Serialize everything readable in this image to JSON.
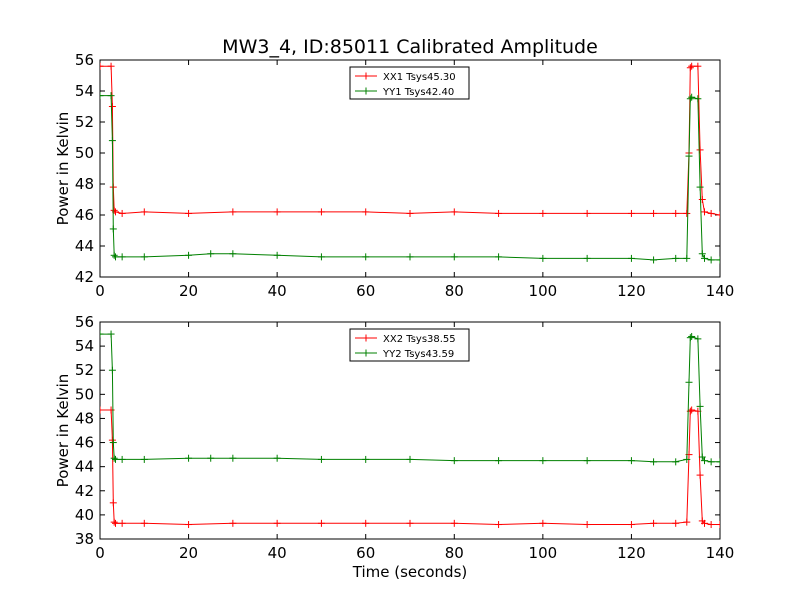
{
  "figure_title": "MW3_4, ID:85011 Calibrated Amplitude",
  "chart_data": [
    {
      "type": "line",
      "title": "MW3_4, ID:85011 Calibrated Amplitude",
      "xlabel": "",
      "ylabel": "Power in Kelvin",
      "xlim": [
        0,
        140
      ],
      "ylim": [
        42,
        56
      ],
      "xticks": [
        "0",
        "20",
        "40",
        "60",
        "80",
        "100",
        "120",
        "140"
      ],
      "yticks": [
        "42",
        "44",
        "46",
        "48",
        "50",
        "52",
        "54",
        "56"
      ],
      "grid": false,
      "legend_position": "top-center",
      "series": [
        {
          "name": "XX1 Tsys45.30",
          "color": "#ff0000",
          "marker": "+",
          "x": [
            0,
            2.5,
            2.8,
            3.0,
            3.2,
            3.5,
            5,
            10,
            20,
            30,
            40,
            50,
            60,
            70,
            80,
            90,
            100,
            110,
            120,
            125,
            130,
            132.5,
            133.0,
            133.3,
            133.6,
            135,
            135.5,
            136.0,
            136.5,
            138,
            140
          ],
          "y": [
            55.6,
            55.6,
            53.0,
            47.8,
            46.3,
            46.2,
            46.1,
            46.2,
            46.1,
            46.2,
            46.2,
            46.2,
            46.2,
            46.1,
            46.2,
            46.1,
            46.1,
            46.1,
            46.1,
            46.1,
            46.1,
            46.1,
            50.0,
            55.5,
            55.6,
            55.6,
            50.2,
            47.0,
            46.2,
            46.1,
            46.0
          ]
        },
        {
          "name": "YY1 Tsys42.40",
          "color": "#008000",
          "marker": "+",
          "x": [
            0,
            2.5,
            2.8,
            3.0,
            3.2,
            3.5,
            5,
            10,
            20,
            25,
            30,
            40,
            50,
            60,
            70,
            80,
            90,
            100,
            110,
            120,
            125,
            130,
            132.5,
            133.0,
            133.3,
            133.6,
            135,
            135.5,
            136.0,
            136.5,
            138,
            140
          ],
          "y": [
            53.7,
            53.7,
            50.8,
            45.1,
            43.4,
            43.3,
            43.3,
            43.3,
            43.4,
            43.5,
            43.5,
            43.4,
            43.3,
            43.3,
            43.3,
            43.3,
            43.3,
            43.2,
            43.2,
            43.2,
            43.1,
            43.2,
            43.2,
            49.8,
            53.5,
            53.6,
            53.5,
            47.8,
            43.5,
            43.2,
            43.1,
            43.1
          ]
        }
      ]
    },
    {
      "type": "line",
      "title": "",
      "xlabel": "Time (seconds)",
      "ylabel": "Power in Kelvin",
      "xlim": [
        0,
        140
      ],
      "ylim": [
        38,
        56
      ],
      "xticks": [
        "0",
        "20",
        "40",
        "60",
        "80",
        "100",
        "120",
        "140"
      ],
      "yticks": [
        "38",
        "40",
        "42",
        "44",
        "46",
        "48",
        "50",
        "52",
        "54",
        "56"
      ],
      "grid": false,
      "legend_position": "top-center",
      "series": [
        {
          "name": "XX2 Tsys38.55",
          "color": "#ff0000",
          "marker": "+",
          "x": [
            0,
            2.5,
            2.8,
            3.0,
            3.2,
            3.5,
            5,
            10,
            20,
            30,
            40,
            50,
            60,
            70,
            80,
            90,
            100,
            110,
            120,
            125,
            130,
            132.5,
            133.0,
            133.3,
            133.6,
            135,
            135.5,
            136.0,
            136.5,
            138,
            140
          ],
          "y": [
            48.7,
            48.7,
            46.2,
            41.0,
            39.4,
            39.3,
            39.3,
            39.3,
            39.2,
            39.3,
            39.3,
            39.3,
            39.3,
            39.3,
            39.3,
            39.2,
            39.3,
            39.2,
            39.2,
            39.3,
            39.3,
            39.4,
            45.0,
            48.6,
            48.7,
            48.6,
            43.3,
            39.5,
            39.3,
            39.2,
            39.2
          ]
        },
        {
          "name": "YY2 Tsys43.59",
          "color": "#008000",
          "marker": "+",
          "x": [
            0,
            2.5,
            2.8,
            3.0,
            3.2,
            3.5,
            5,
            10,
            20,
            25,
            30,
            40,
            50,
            60,
            70,
            80,
            90,
            100,
            110,
            120,
            125,
            130,
            132.5,
            133.0,
            133.3,
            133.6,
            135,
            135.5,
            136.0,
            136.5,
            138,
            140
          ],
          "y": [
            55.0,
            55.0,
            52.0,
            46.0,
            44.7,
            44.6,
            44.6,
            44.6,
            44.7,
            44.7,
            44.7,
            44.7,
            44.6,
            44.6,
            44.6,
            44.5,
            44.5,
            44.5,
            44.5,
            44.5,
            44.4,
            44.4,
            44.6,
            51.0,
            54.7,
            54.8,
            54.6,
            49.0,
            44.8,
            44.5,
            44.4,
            44.4
          ]
        }
      ]
    }
  ]
}
